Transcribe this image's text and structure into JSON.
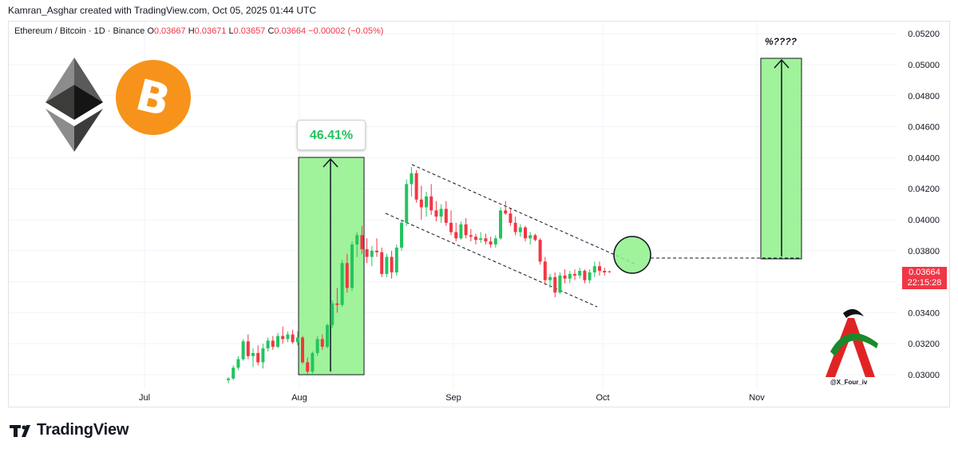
{
  "header": {
    "credit": "Kamran_Asghar created with TradingView.com, Oct 05, 2025 01:44 UTC"
  },
  "legend": {
    "symbol": "Ethereum / Bitcoin · 1D · Binance",
    "open_label": "O",
    "open": "0.03667",
    "high_label": "H",
    "high": "0.03671",
    "low_label": "L",
    "low": "0.03657",
    "close_label": "C",
    "close": "0.03664",
    "change": "−0.00002 (−0.05%)"
  },
  "annotations": {
    "gain": "46.41%",
    "target": "%????",
    "signature": "@X_Four_iv"
  },
  "price_tag": {
    "price": "0.03664",
    "countdown": "22:15:28"
  },
  "footer": {
    "brand": "TradingView"
  },
  "colors": {
    "up": "#22c55e",
    "down": "#f23645",
    "box": "#8ff08a",
    "grid": "#f0f3fa",
    "eth": "#4a4a4a",
    "btc": "#f7931a"
  },
  "icons": [
    "ethereum-logo-icon",
    "bitcoin-logo-icon",
    "tradingview-logo-icon",
    "author-logo-icon"
  ],
  "chart_data": {
    "type": "candlestick",
    "y_axis": {
      "side": "right",
      "ylim": [
        0.0293,
        0.0525
      ],
      "ticks": [
        "0.05200",
        "0.05000",
        "0.04800",
        "0.04600",
        "0.04400",
        "0.04200",
        "0.04000",
        "0.03800",
        "0.03600",
        "0.03400",
        "0.03200",
        "0.03000"
      ]
    },
    "x_axis": {
      "ticks": [
        "Jul",
        "Aug",
        "Sep",
        "Oct",
        "Nov"
      ]
    },
    "grid": true,
    "ohlc": [
      [
        0.02965,
        0.02985,
        0.02945,
        0.02975
      ],
      [
        0.02975,
        0.0306,
        0.02965,
        0.03045
      ],
      [
        0.03045,
        0.0312,
        0.0303,
        0.031
      ],
      [
        0.031,
        0.0323,
        0.0309,
        0.03215
      ],
      [
        0.03215,
        0.0326,
        0.031,
        0.0312
      ],
      [
        0.0312,
        0.0317,
        0.0305,
        0.0314
      ],
      [
        0.0314,
        0.0319,
        0.0306,
        0.0308
      ],
      [
        0.0308,
        0.032,
        0.0304,
        0.0317
      ],
      [
        0.0317,
        0.0324,
        0.0315,
        0.0322
      ],
      [
        0.0322,
        0.0325,
        0.0316,
        0.0318
      ],
      [
        0.0318,
        0.0327,
        0.0317,
        0.0325
      ],
      [
        0.0325,
        0.0331,
        0.032,
        0.0323
      ],
      [
        0.0323,
        0.0328,
        0.0321,
        0.0326
      ],
      [
        0.0326,
        0.0329,
        0.032,
        0.0321
      ],
      [
        0.0321,
        0.0328,
        0.0319,
        0.0324
      ],
      [
        0.0324,
        0.0325,
        0.0307,
        0.0308
      ],
      [
        0.0308,
        0.0311,
        0.03005,
        0.0302
      ],
      [
        0.0302,
        0.0315,
        0.03,
        0.0314
      ],
      [
        0.0314,
        0.0325,
        0.0312,
        0.0323
      ],
      [
        0.0323,
        0.0326,
        0.0316,
        0.0318
      ],
      [
        0.0318,
        0.0333,
        0.0317,
        0.0332
      ],
      [
        0.0332,
        0.0348,
        0.033,
        0.0346
      ],
      [
        0.0346,
        0.0356,
        0.034,
        0.0345
      ],
      [
        0.0345,
        0.0374,
        0.0344,
        0.0372
      ],
      [
        0.0372,
        0.0378,
        0.0353,
        0.0356
      ],
      [
        0.0356,
        0.0386,
        0.0354,
        0.0384
      ],
      [
        0.0384,
        0.0392,
        0.0376,
        0.039
      ],
      [
        0.039,
        0.0396,
        0.0378,
        0.0381
      ],
      [
        0.0381,
        0.0388,
        0.0372,
        0.0376
      ],
      [
        0.0376,
        0.0383,
        0.037,
        0.038
      ],
      [
        0.038,
        0.0388,
        0.0376,
        0.0379
      ],
      [
        0.0379,
        0.0382,
        0.0363,
        0.0365
      ],
      [
        0.0365,
        0.0378,
        0.0363,
        0.0376
      ],
      [
        0.0376,
        0.038,
        0.0362,
        0.0366
      ],
      [
        0.0366,
        0.0384,
        0.0364,
        0.0382
      ],
      [
        0.0382,
        0.04,
        0.038,
        0.0398
      ],
      [
        0.0398,
        0.0426,
        0.0396,
        0.0423
      ],
      [
        0.0423,
        0.0434,
        0.0415,
        0.043
      ],
      [
        0.043,
        0.0432,
        0.0411,
        0.0413
      ],
      [
        0.0413,
        0.0422,
        0.04,
        0.0408
      ],
      [
        0.0408,
        0.0418,
        0.0402,
        0.0415
      ],
      [
        0.0415,
        0.0423,
        0.0403,
        0.0406
      ],
      [
        0.0406,
        0.0412,
        0.0399,
        0.0402
      ],
      [
        0.0402,
        0.041,
        0.0398,
        0.0407
      ],
      [
        0.0407,
        0.0412,
        0.0396,
        0.0398
      ],
      [
        0.0398,
        0.0406,
        0.039,
        0.0392
      ],
      [
        0.0392,
        0.0398,
        0.0386,
        0.0388
      ],
      [
        0.0388,
        0.0399,
        0.0387,
        0.0397
      ],
      [
        0.0397,
        0.0401,
        0.0388,
        0.039
      ],
      [
        0.039,
        0.0394,
        0.0386,
        0.0389
      ],
      [
        0.0389,
        0.0391,
        0.0384,
        0.0387
      ],
      [
        0.0387,
        0.0392,
        0.0385,
        0.0388
      ],
      [
        0.0388,
        0.0391,
        0.0384,
        0.0386
      ],
      [
        0.0386,
        0.0389,
        0.0382,
        0.0384
      ],
      [
        0.0384,
        0.039,
        0.0382,
        0.0388
      ],
      [
        0.0388,
        0.0408,
        0.0387,
        0.0406
      ],
      [
        0.0406,
        0.0412,
        0.0403,
        0.0404
      ],
      [
        0.0404,
        0.0407,
        0.0396,
        0.0398
      ],
      [
        0.0398,
        0.0402,
        0.039,
        0.0392
      ],
      [
        0.0392,
        0.0397,
        0.0389,
        0.0395
      ],
      [
        0.0395,
        0.0396,
        0.0386,
        0.0388
      ],
      [
        0.0388,
        0.0392,
        0.0384,
        0.039
      ],
      [
        0.039,
        0.0391,
        0.0386,
        0.0387
      ],
      [
        0.0387,
        0.0388,
        0.0371,
        0.0373
      ],
      [
        0.0373,
        0.0376,
        0.0358,
        0.0361
      ],
      [
        0.0361,
        0.0365,
        0.0356,
        0.0363
      ],
      [
        0.0363,
        0.0366,
        0.035,
        0.0353
      ],
      [
        0.0353,
        0.0366,
        0.0352,
        0.0364
      ],
      [
        0.0364,
        0.0368,
        0.0359,
        0.0362
      ],
      [
        0.0362,
        0.0367,
        0.0359,
        0.0365
      ],
      [
        0.0365,
        0.0368,
        0.0361,
        0.0364
      ],
      [
        0.0364,
        0.0369,
        0.0362,
        0.0367
      ],
      [
        0.0367,
        0.0368,
        0.0359,
        0.0361
      ],
      [
        0.0361,
        0.0368,
        0.0359,
        0.0366
      ],
      [
        0.0366,
        0.0373,
        0.0363,
        0.037
      ],
      [
        0.037,
        0.0373,
        0.0364,
        0.0367
      ],
      [
        0.0367,
        0.0369,
        0.0364,
        0.0366
      ],
      [
        0.03667,
        0.03671,
        0.03657,
        0.03664
      ]
    ]
  }
}
